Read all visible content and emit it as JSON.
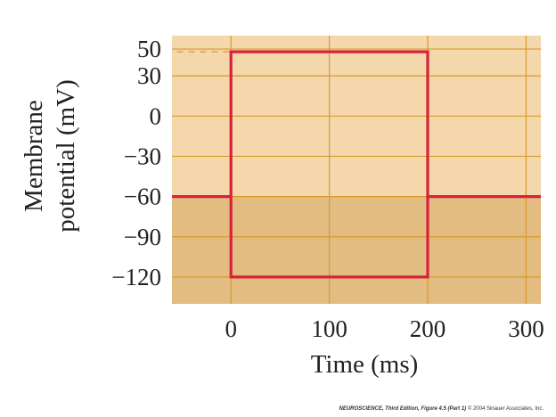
{
  "chart_data": {
    "type": "line",
    "title": "",
    "xlabel": "Time (ms)",
    "ylabel_lines": [
      "Membrane",
      "potential (mV)"
    ],
    "xlim": [
      -60,
      315
    ],
    "ylim": [
      -140,
      60
    ],
    "x_ticks": [
      0,
      100,
      200,
      300
    ],
    "x_tick_labels": [
      "0",
      "100",
      "200",
      "300"
    ],
    "y_ticks": [
      50,
      30,
      0,
      -30,
      -60,
      -90,
      -120
    ],
    "y_tick_labels": [
      "50",
      "30",
      "0",
      "−30",
      "−60",
      "−90",
      "−120"
    ],
    "grid": true,
    "series": [
      {
        "x": [
          -60,
          0,
          0,
          200,
          200,
          315
        ],
        "y": [
          -60,
          -60,
          -120,
          -120,
          -60,
          -60
        ]
      },
      {
        "x": [
          0,
          0,
          200,
          200
        ],
        "y": [
          -60,
          48,
          48,
          -60
        ]
      }
    ],
    "reference_line": {
      "x": [
        -55,
        0
      ],
      "y": 48,
      "style": "dashed"
    },
    "shaded_region_below": -60,
    "colors": {
      "upper_background": "#f4d7ab",
      "lower_background": "#e3bc82",
      "grid": "#d99a2e",
      "trace": "#d8213a",
      "reference": "#e8a04a"
    }
  },
  "credit": {
    "book": "NEUROSCIENCE, Third Edition,",
    "figure": "Figure 4.5 (Part 1)",
    "copyright": "© 2004 Sinauer Associates, Inc."
  }
}
